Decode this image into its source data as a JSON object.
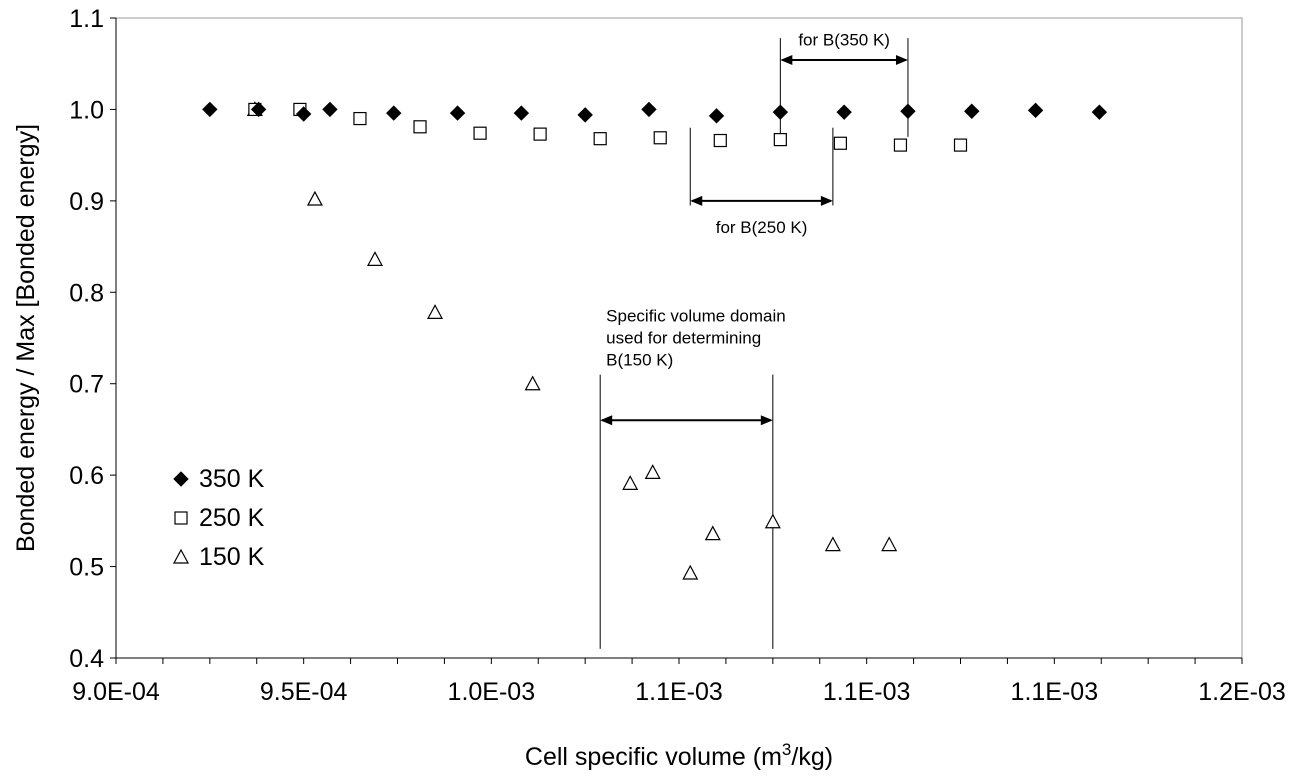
{
  "chart_data": {
    "type": "scatter",
    "xlabel_main": "Cell specific volume  (m",
    "xlabel_sup": "3",
    "xlabel_end": "/kg)",
    "ylabel": "Bonded energy / Max [Bonded energy]",
    "xlim": [
      0.0009,
      0.0012
    ],
    "ylim": [
      0.4,
      1.1
    ],
    "x_ticks": [
      0.0009,
      0.00095,
      0.001,
      0.00105,
      0.0011,
      0.00115,
      0.0012
    ],
    "x_tick_labels": [
      "9.0E-04",
      "9.5E-04",
      "1.0E-03",
      "1.1E-03",
      "1.1E-03",
      "1.1E-03",
      "1.2E-03"
    ],
    "x_minor_step": 1.25e-05,
    "y_ticks": [
      0.4,
      0.5,
      0.6,
      0.7,
      0.8,
      0.9,
      1.0,
      1.1
    ],
    "y_tick_labels": [
      "0.4",
      "0.5",
      "0.6",
      "0.7",
      "0.8",
      "0.9",
      "1.0",
      "1.1"
    ],
    "grid": false,
    "legend_position": "bottom-left",
    "series": [
      {
        "name": "350 K",
        "marker": "diamond-filled",
        "x": [
          0.000925,
          0.000938,
          0.00095,
          0.000957,
          0.000974,
          0.000991,
          0.001008,
          0.001025,
          0.001042,
          0.00106,
          0.001077,
          0.001094,
          0.001111,
          0.001128,
          0.001145,
          0.001162
        ],
        "y": [
          1.0,
          1.0,
          0.995,
          1.0,
          0.996,
          0.996,
          0.996,
          0.994,
          1.0,
          0.993,
          0.997,
          0.997,
          0.998,
          0.998,
          0.999,
          0.997
        ]
      },
      {
        "name": "250 K",
        "marker": "square-open",
        "x": [
          0.000937,
          0.000949,
          0.000965,
          0.000981,
          0.000997,
          0.001013,
          0.001029,
          0.001045,
          0.001061,
          0.001077,
          0.001093,
          0.001109,
          0.001125
        ],
        "y": [
          1.0,
          1.0,
          0.99,
          0.981,
          0.974,
          0.973,
          0.968,
          0.969,
          0.966,
          0.967,
          0.963,
          0.961,
          0.961
        ]
      },
      {
        "name": "150 K",
        "marker": "triangle-open",
        "x": [
          0.000937,
          0.000953,
          0.000969,
          0.000985,
          0.001011,
          0.001037,
          0.001043,
          0.001053,
          0.001059,
          0.001075,
          0.001091,
          0.001106
        ],
        "y": [
          1.0,
          0.902,
          0.836,
          0.778,
          0.7,
          0.591,
          0.603,
          0.493,
          0.536,
          0.549,
          0.524,
          0.524
        ]
      }
    ],
    "annotations": [
      {
        "id": "b350",
        "lines": [
          "for B(350 K)"
        ],
        "x_from": 0.001077,
        "x_to": 0.001111,
        "arrow_y": 1.054,
        "text_y": 1.07,
        "vline_from_y": 0.97,
        "vline_to_y": 1.078
      },
      {
        "id": "b250",
        "lines": [
          "for B(250 K)"
        ],
        "x_from": 0.001053,
        "x_to": 0.001091,
        "arrow_y": 0.9,
        "text_y": 0.865,
        "vline_from_y": 0.895,
        "vline_to_y": 0.98
      },
      {
        "id": "b150",
        "lines": [
          "Specific volume domain",
          "used for determining",
          "B(150 K)"
        ],
        "x_from": 0.001029,
        "x_to": 0.001075,
        "arrow_y": 0.66,
        "text_y": 0.768,
        "vline_from_y": 0.41,
        "vline_to_y": 0.71
      }
    ]
  }
}
